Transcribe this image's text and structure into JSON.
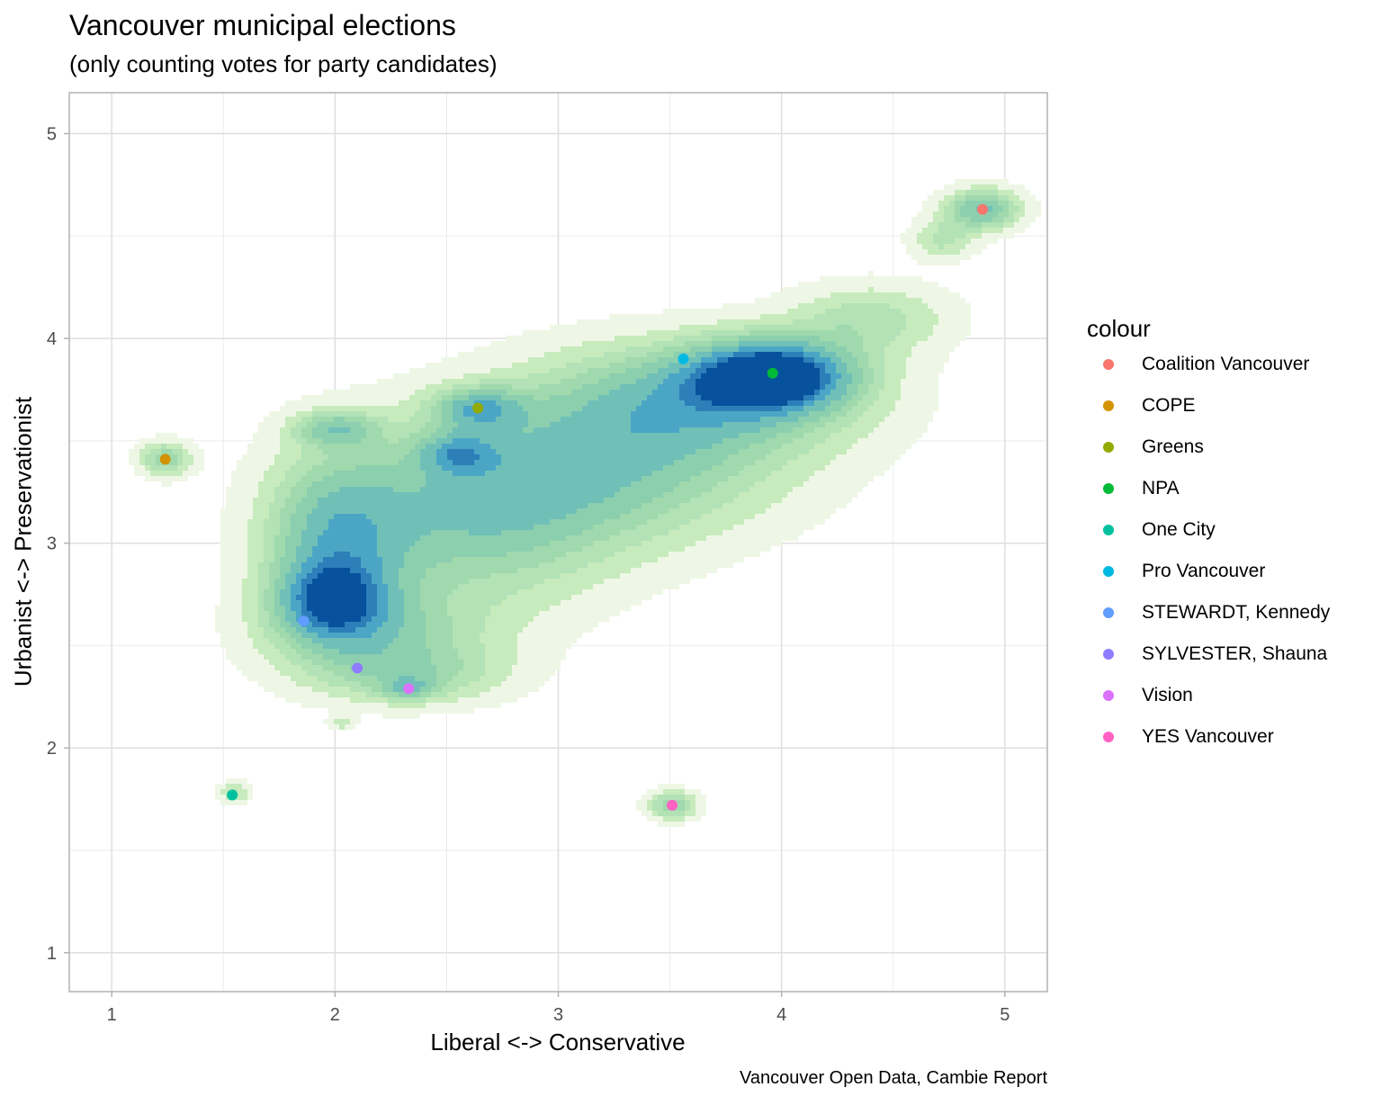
{
  "chart_data": {
    "type": "scatter",
    "title": "Vancouver municipal elections",
    "subtitle": "(only counting votes for party candidates)",
    "xlabel": "Liberal <-> Conservative",
    "ylabel": "Urbanist <-> Preservationist",
    "caption": "Vancouver Open Data, Cambie Report",
    "xlim": [
      0.81,
      5.19
    ],
    "ylim": [
      0.81,
      5.2
    ],
    "xticks": [
      "1",
      "2",
      "3",
      "4",
      "5"
    ],
    "yticks": [
      "1",
      "2",
      "3",
      "4",
      "5"
    ],
    "grid": true,
    "legend_title": "colour",
    "legend_position": "right",
    "background_layer": "2D density contour fill (light green to dark blue)",
    "density_palette": [
      "#eef7e5",
      "#c7ebbd",
      "#b2e2b5",
      "#9fd9ad",
      "#8ccfaf",
      "#70c0b8",
      "#4ba6c6",
      "#2c7fb8",
      "#08519c"
    ],
    "series": [
      {
        "name": "Coalition Vancouver",
        "color": "#F8766D",
        "x": 4.9,
        "y": 4.63
      },
      {
        "name": "COPE",
        "color": "#D39200",
        "x": 1.24,
        "y": 3.41
      },
      {
        "name": "Greens",
        "color": "#93AA00",
        "x": 2.64,
        "y": 3.66
      },
      {
        "name": "NPA",
        "color": "#00BA38",
        "x": 3.96,
        "y": 3.83
      },
      {
        "name": "One City",
        "color": "#00C19F",
        "x": 1.54,
        "y": 1.77
      },
      {
        "name": "Pro Vancouver",
        "color": "#00B9E3",
        "x": 3.56,
        "y": 3.9
      },
      {
        "name": "STEWARDT, Kennedy",
        "color": "#619CFF",
        "x": 1.86,
        "y": 2.62
      },
      {
        "name": "SYLVESTER, Shauna",
        "color": "#8F7CFF",
        "x": 2.1,
        "y": 2.39
      },
      {
        "name": "Vision",
        "color": "#DB72FB",
        "x": 2.33,
        "y": 2.29
      },
      {
        "name": "YES Vancouver",
        "color": "#FF61C3",
        "x": 3.51,
        "y": 1.72
      }
    ],
    "density_blobs": [
      {
        "x": 3.96,
        "y": 3.82,
        "weight": 1.0,
        "sx": 0.25,
        "sy": 0.12
      },
      {
        "x": 3.6,
        "y": 3.7,
        "weight": 0.55,
        "sx": 0.5,
        "sy": 0.2
      },
      {
        "x": 3.2,
        "y": 3.35,
        "weight": 0.45,
        "sx": 0.55,
        "sy": 0.25
      },
      {
        "x": 2.6,
        "y": 3.1,
        "weight": 0.45,
        "sx": 0.45,
        "sy": 0.3
      },
      {
        "x": 2.0,
        "y": 3.0,
        "weight": 0.55,
        "sx": 0.22,
        "sy": 0.3
      },
      {
        "x": 1.98,
        "y": 2.72,
        "weight": 0.6,
        "sx": 0.17,
        "sy": 0.13
      },
      {
        "x": 2.2,
        "y": 2.55,
        "weight": 0.35,
        "sx": 0.35,
        "sy": 0.15
      },
      {
        "x": 2.64,
        "y": 3.66,
        "weight": 0.5,
        "sx": 0.14,
        "sy": 0.07
      },
      {
        "x": 2.55,
        "y": 3.44,
        "weight": 0.42,
        "sx": 0.12,
        "sy": 0.07
      },
      {
        "x": 2.0,
        "y": 3.56,
        "weight": 0.42,
        "sx": 0.13,
        "sy": 0.06
      },
      {
        "x": 2.35,
        "y": 2.35,
        "weight": 0.3,
        "sx": 0.3,
        "sy": 0.1
      },
      {
        "x": 2.33,
        "y": 2.29,
        "weight": 0.32,
        "sx": 0.08,
        "sy": 0.04
      },
      {
        "x": 4.4,
        "y": 4.1,
        "weight": 0.3,
        "sx": 0.25,
        "sy": 0.12
      },
      {
        "x": 4.9,
        "y": 4.63,
        "weight": 0.6,
        "sx": 0.12,
        "sy": 0.07
      },
      {
        "x": 4.72,
        "y": 4.48,
        "weight": 0.28,
        "sx": 0.1,
        "sy": 0.07
      },
      {
        "x": 1.24,
        "y": 3.41,
        "weight": 0.45,
        "sx": 0.08,
        "sy": 0.06
      },
      {
        "x": 3.51,
        "y": 1.72,
        "weight": 0.45,
        "sx": 0.08,
        "sy": 0.05
      },
      {
        "x": 1.55,
        "y": 1.78,
        "weight": 0.28,
        "sx": 0.05,
        "sy": 0.04
      },
      {
        "x": 2.03,
        "y": 2.12,
        "weight": 0.25,
        "sx": 0.04,
        "sy": 0.02
      }
    ]
  }
}
